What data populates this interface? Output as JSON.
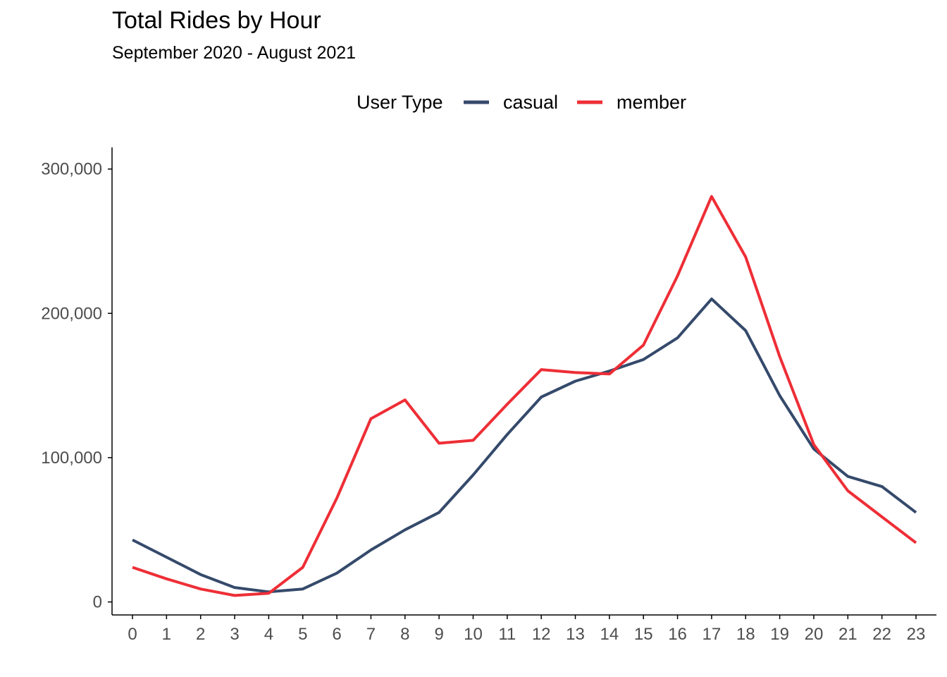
{
  "chart_data": {
    "type": "line",
    "title": "Total Rides by Hour",
    "subtitle": "September 2020 - August 2021",
    "xlabel": "",
    "ylabel": "",
    "legend": {
      "title": "User Type",
      "position": "top"
    },
    "x": [
      0,
      1,
      2,
      3,
      4,
      5,
      6,
      7,
      8,
      9,
      10,
      11,
      12,
      13,
      14,
      15,
      16,
      17,
      18,
      19,
      20,
      21,
      22,
      23
    ],
    "x_tick_labels": [
      "0",
      "1",
      "2",
      "3",
      "4",
      "5",
      "6",
      "7",
      "8",
      "9",
      "10",
      "11",
      "12",
      "13",
      "14",
      "15",
      "16",
      "17",
      "18",
      "19",
      "20",
      "21",
      "22",
      "23"
    ],
    "y_ticks": [
      0,
      100000,
      200000,
      300000
    ],
    "y_tick_labels": [
      "0",
      "100,000",
      "200,000",
      "300,000"
    ],
    "ylim": [
      -9000,
      315000
    ],
    "grid": false,
    "series": [
      {
        "name": "casual",
        "color": "#354a6b",
        "values": [
          43000,
          31000,
          19000,
          10000,
          7000,
          9000,
          20000,
          36000,
          50000,
          62000,
          88000,
          116000,
          142000,
          153000,
          160000,
          168000,
          183000,
          210000,
          188000,
          143000,
          106000,
          87000,
          80000,
          62000
        ]
      },
      {
        "name": "member",
        "color": "#ee2e36",
        "values": [
          24000,
          16000,
          9000,
          4500,
          6000,
          24000,
          72000,
          127000,
          140000,
          110000,
          112000,
          137000,
          161000,
          159000,
          158000,
          178000,
          226000,
          281000,
          239000,
          170000,
          109000,
          77000,
          59000,
          41000
        ]
      }
    ]
  }
}
